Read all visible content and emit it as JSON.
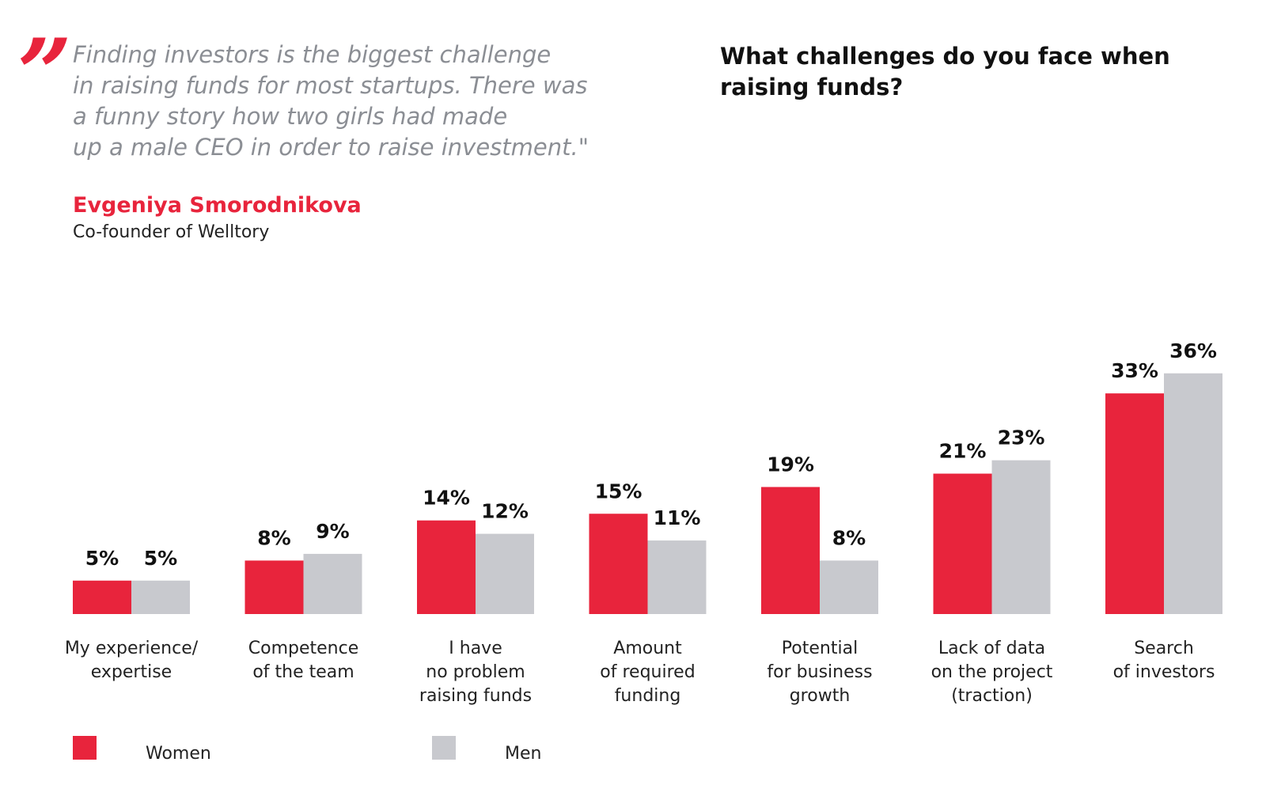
{
  "quote": {
    "mark": "”",
    "lines": [
      "Finding investors is the biggest challenge",
      "in raising funds for most startups. There was",
      "a funny story how two girls had made",
      "up a male CEO in order to raise investment.\""
    ]
  },
  "author": {
    "name": "Evgeniya Smorodnikova",
    "role": "Co-founder of Welltory"
  },
  "colors": {
    "women": "#e8243c",
    "men": "#c8c9ce",
    "accent": "#e8243c"
  },
  "chart_data": {
    "type": "bar",
    "title_lines": [
      "What challenges do you face when",
      "raising funds?"
    ],
    "categories": [
      [
        "My experience/",
        "expertise"
      ],
      [
        "Competence",
        "of the team"
      ],
      [
        "I have",
        "no problem",
        "raising funds"
      ],
      [
        "Amount",
        "of required",
        "funding"
      ],
      [
        "Potential",
        "for business",
        "growth"
      ],
      [
        "Lack of data",
        "on the project",
        "(traction)"
      ],
      [
        "Search",
        "of investors"
      ]
    ],
    "series": [
      {
        "name": "Women",
        "values": [
          5,
          8,
          14,
          15,
          19,
          21,
          33
        ],
        "labels": [
          "5%",
          "8%",
          "14%",
          "15%",
          "19%",
          "21%",
          "33%"
        ]
      },
      {
        "name": "Men",
        "values": [
          5,
          9,
          12,
          11,
          8,
          23,
          36
        ],
        "labels": [
          "5%",
          "9%",
          "12%",
          "11%",
          "8%",
          "23%",
          "36%"
        ]
      }
    ],
    "ylim": [
      0,
      36
    ],
    "xlabel": "",
    "ylabel": "",
    "grid": false,
    "legend": "bottom-left"
  }
}
